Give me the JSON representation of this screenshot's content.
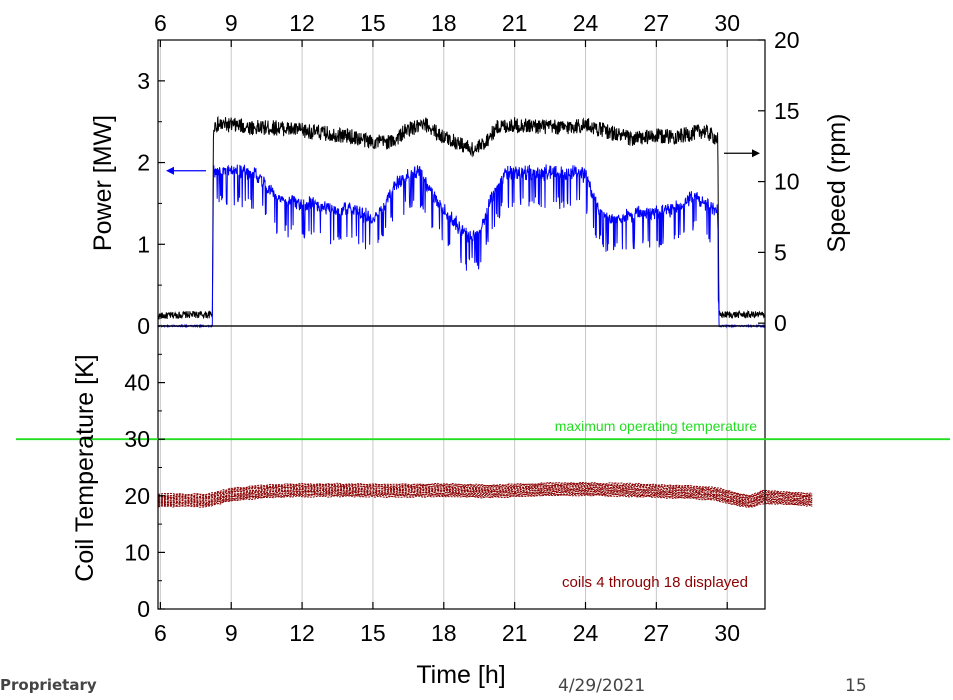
{
  "footer": {
    "org": "Proprietary",
    "date": "4/29/2021",
    "page": "15"
  },
  "colors": {
    "power": "#0000ff",
    "speed": "#000000",
    "coil": "#8b0000",
    "threshold": "#22dd22",
    "grid": "#c8c8c8"
  },
  "chart_data": [
    {
      "type": "line",
      "name": "top-panel",
      "x_axis": {
        "label": "",
        "range": [
          5.9,
          31.6
        ],
        "ticks": [
          6,
          9,
          12,
          15,
          18,
          21,
          24,
          27,
          30
        ],
        "position": "top"
      },
      "y_left": {
        "label": "Power [MW]",
        "range": [
          0,
          3.5
        ],
        "ticks": [
          0,
          1,
          2,
          3
        ]
      },
      "y_right": {
        "label": "Speed (rpm)",
        "range": [
          -0.2,
          20
        ],
        "ticks": [
          0,
          5,
          10,
          15,
          20
        ]
      },
      "grid": {
        "vertical": true,
        "horizontal": false
      },
      "series": [
        {
          "axis": "right",
          "color": "#000000",
          "x": [
            6,
            7,
            8.2,
            8.25,
            9,
            10,
            11,
            12,
            13,
            14,
            15,
            15.8,
            16.5,
            17.3,
            17.8,
            18.5,
            19.3,
            19.7,
            20.3,
            21,
            22,
            23,
            24,
            25,
            26,
            27,
            28,
            29,
            29.6,
            29.65,
            31.6
          ],
          "y": [
            0.5,
            0.6,
            0.6,
            14,
            14,
            13.8,
            13.8,
            13.6,
            13.4,
            13.2,
            12.8,
            12.8,
            13.7,
            14,
            13.3,
            12.8,
            12.2,
            12.7,
            13.9,
            14,
            13.9,
            13.8,
            14,
            13.5,
            13,
            13.2,
            13.2,
            13.6,
            13,
            0.6,
            0.6
          ],
          "noise": 0.5
        },
        {
          "axis": "left",
          "color": "#0000ff",
          "x": [
            6,
            8.2,
            8.25,
            9,
            10,
            10.5,
            11,
            12,
            13,
            13.5,
            14,
            15,
            15.5,
            16,
            16.5,
            17,
            17.5,
            18,
            18.5,
            19,
            19.5,
            20,
            20.5,
            21,
            22,
            23,
            24,
            24.5,
            25,
            26,
            27,
            28,
            28.5,
            29,
            29.6,
            29.65,
            31.6
          ],
          "y": [
            0,
            0,
            1.95,
            1.95,
            1.92,
            1.75,
            1.6,
            1.55,
            1.5,
            1.45,
            1.5,
            1.35,
            1.55,
            1.8,
            1.9,
            1.95,
            1.65,
            1.45,
            1.3,
            1.15,
            1.2,
            1.6,
            1.9,
            1.93,
            1.93,
            1.92,
            1.9,
            1.5,
            1.35,
            1.4,
            1.45,
            1.5,
            1.65,
            1.55,
            1.45,
            0,
            0
          ],
          "noise": 0.28
        }
      ],
      "annotations": [
        {
          "type": "arrow",
          "direction": "left",
          "color": "#0000ff",
          "meaning": "power uses left axis"
        },
        {
          "type": "arrow",
          "direction": "right",
          "color": "#000000",
          "meaning": "speed uses right axis"
        }
      ]
    },
    {
      "type": "line",
      "name": "bottom-panel",
      "x_axis": {
        "label": "Time [h]",
        "range": [
          5.9,
          31.6
        ],
        "ticks": [
          6,
          9,
          12,
          15,
          18,
          21,
          24,
          27,
          30
        ],
        "position": "bottom"
      },
      "y_left": {
        "label": "Coil Temperature [K]",
        "range": [
          0,
          50
        ],
        "ticks": [
          0,
          10,
          20,
          30,
          40
        ]
      },
      "grid": {
        "vertical": true,
        "horizontal": false
      },
      "threshold": {
        "value": 30,
        "label": "maximum operating temperature",
        "color": "#22dd22"
      },
      "note": "coils 4 through 18 displayed",
      "series": {
        "color": "#8b0000",
        "count": 15,
        "x": [
          5.9,
          8,
          9,
          10,
          11,
          12,
          14,
          16,
          18,
          20,
          22,
          24,
          26,
          28,
          29.5,
          30.5,
          31,
          31.5,
          32.5,
          33.6
        ],
        "center": [
          19.2,
          19.2,
          20.2,
          20.6,
          20.9,
          21,
          21,
          20.9,
          21,
          20.8,
          21.1,
          21.2,
          21,
          20.7,
          20.4,
          19.3,
          19,
          19.8,
          19.6,
          19.3
        ],
        "spread": 2.2
      }
    }
  ]
}
